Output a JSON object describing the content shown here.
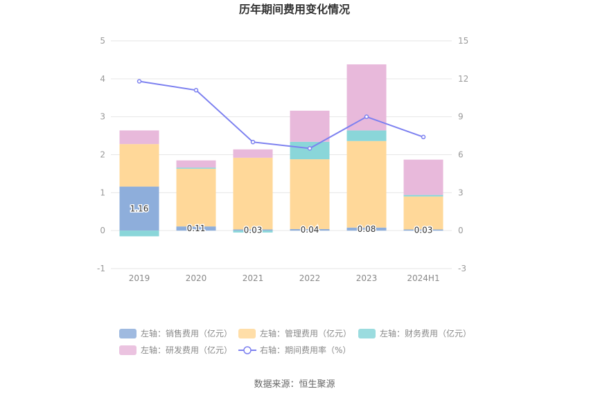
{
  "chart_data": {
    "type": "bar",
    "title": "历年期间费用变化情况",
    "categories": [
      "2019",
      "2020",
      "2021",
      "2022",
      "2023",
      "2024H1"
    ],
    "y_left": {
      "min": -1,
      "max": 5,
      "ticks": [
        "-1",
        "0",
        "1",
        "2",
        "3",
        "4",
        "5"
      ]
    },
    "y_right": {
      "min": -3,
      "max": 15,
      "ticks": [
        "-3",
        "0",
        "3",
        "6",
        "9",
        "12",
        "15"
      ]
    },
    "series": [
      {
        "name": "左轴：销售费用（亿元）",
        "type": "bar",
        "axis": "left",
        "color": "#8eaedb",
        "values": [
          1.16,
          0.11,
          0.03,
          0.04,
          0.08,
          0.03
        ],
        "labels": [
          "1.16",
          "0.11",
          "0.03",
          "0.04",
          "0.08",
          "0.03"
        ]
      },
      {
        "name": "左轴：管理费用（亿元）",
        "type": "bar",
        "axis": "left",
        "color": "#ffd899",
        "values": [
          1.12,
          1.52,
          1.89,
          1.84,
          2.28,
          0.87
        ]
      },
      {
        "name": "左轴：财务费用（亿元）",
        "type": "bar",
        "axis": "left",
        "color": "#8ad6d9",
        "values": [
          -0.15,
          0.03,
          -0.05,
          0.46,
          0.28,
          0.04
        ]
      },
      {
        "name": "左轴：研发费用（亿元）",
        "type": "bar",
        "axis": "left",
        "color": "#e8b9db",
        "values": [
          0.36,
          0.19,
          0.22,
          0.82,
          1.74,
          0.93
        ]
      },
      {
        "name": "右轴：期间费用率（%）",
        "type": "line",
        "axis": "right",
        "color": "#7c80f0",
        "values": [
          11.8,
          11.1,
          7.0,
          6.5,
          9.0,
          7.4
        ]
      }
    ],
    "legend_position": "bottom",
    "grid": true
  },
  "footer": {
    "source": "数据来源：恒生聚源"
  }
}
